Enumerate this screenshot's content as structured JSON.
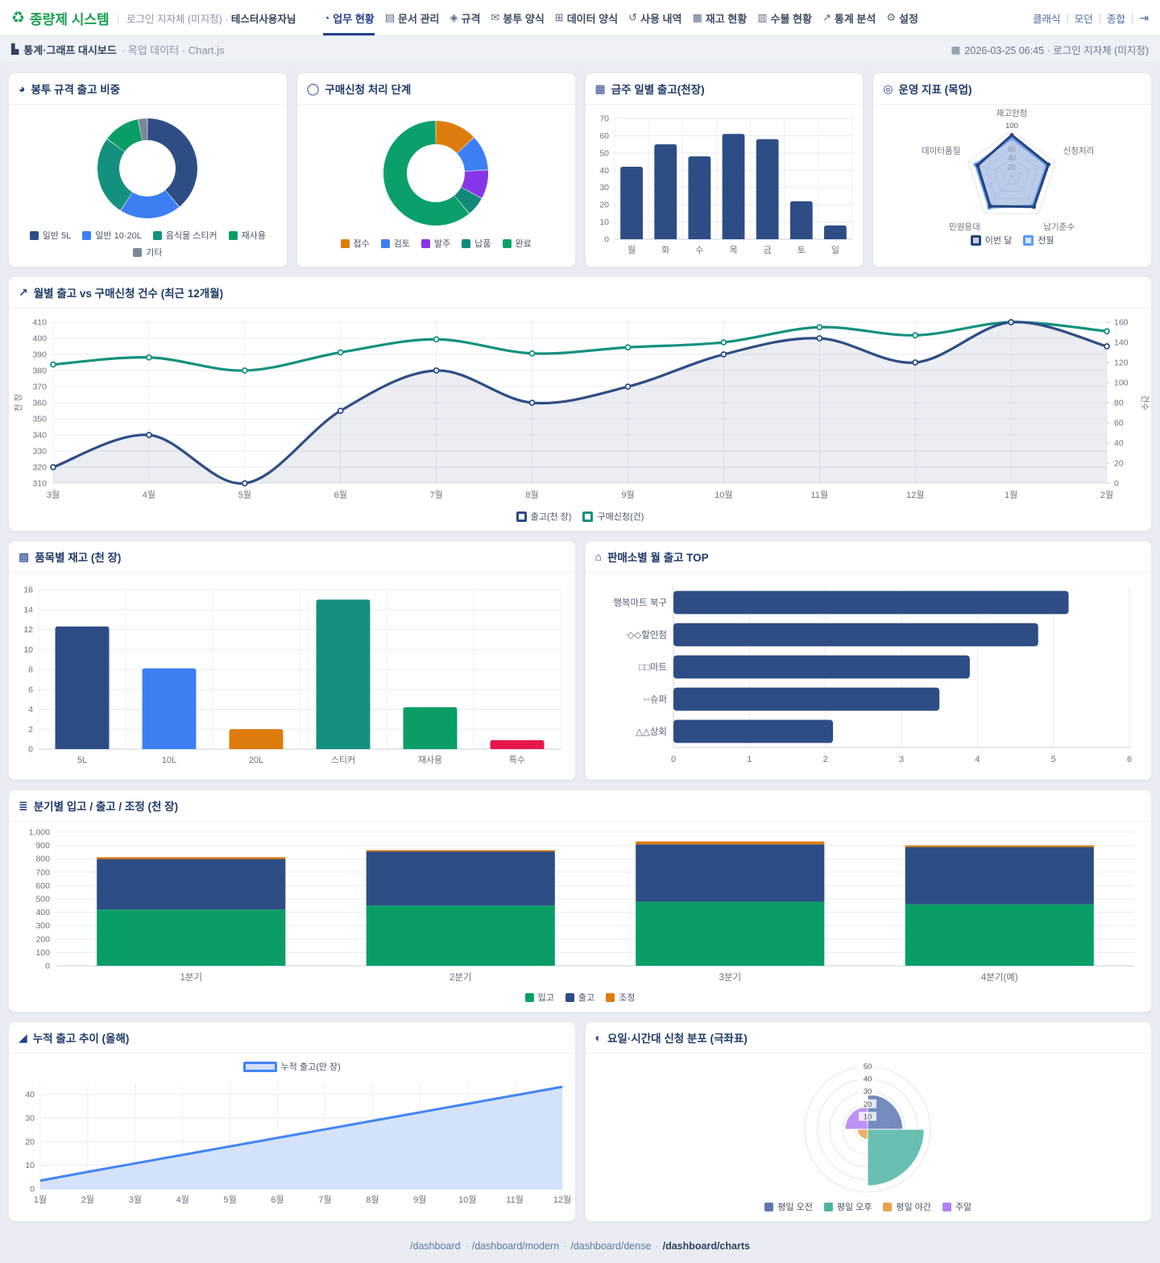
{
  "header": {
    "logo": "종량제 시스템",
    "logo_icon": "♻",
    "login_text": "로그인 지자체 (미지정) ·",
    "user_text": "테스터사용자님",
    "nav": [
      {
        "label": "업무 현황",
        "icon": "◔"
      },
      {
        "label": "문서 관리",
        "icon": "▤"
      },
      {
        "label": "규격",
        "icon": "◈"
      },
      {
        "label": "봉투 양식",
        "icon": "✉"
      },
      {
        "label": "데이터 양식",
        "icon": "⊞"
      },
      {
        "label": "사용 내역",
        "icon": "↺"
      },
      {
        "label": "재고 현황",
        "icon": "▦"
      },
      {
        "label": "수불 현황",
        "icon": "▥"
      },
      {
        "label": "통계 분석",
        "icon": "↗"
      },
      {
        "label": "설정",
        "icon": "⚙"
      }
    ],
    "views": [
      "클래식",
      "모던",
      "종합"
    ],
    "exit_icon": "⇥"
  },
  "breadcrumb": {
    "icon": "▙",
    "title": "통계·그래프 대시보드",
    "sub": "· 목업 데이터 · Chart.js",
    "date_icon": "▦",
    "right": "2026-03-25 06:45 · 로그인 지자체 (미지정)"
  },
  "chart_data": [
    {
      "type": "doughnut",
      "title": "봉투 규격 출고 비중",
      "icon": "◕",
      "labels": [
        "일반 5L",
        "일반 10·20L",
        "음식물 스티커",
        "재사용",
        "기타"
      ],
      "values": [
        39,
        20,
        26,
        12,
        3
      ],
      "colors": [
        "#2e4d85",
        "#3d7ff3",
        "#14917e",
        "#0a9e66",
        "#7b8795"
      ]
    },
    {
      "type": "doughnut",
      "title": "구매신청 처리 단계",
      "icon": "◯",
      "labels": [
        "접수",
        "검토",
        "발주",
        "납품",
        "완료"
      ],
      "values": [
        13,
        11,
        9,
        6,
        61
      ],
      "colors": [
        "#dd7c0c",
        "#3d7ff3",
        "#8636e8",
        "#12897a",
        "#0ba069"
      ]
    },
    {
      "type": "bar",
      "title": "금주 일별 출고(천장)",
      "icon": "▦",
      "categories": [
        "월",
        "화",
        "수",
        "목",
        "금",
        "토",
        "일"
      ],
      "values": [
        42,
        55,
        48,
        61,
        58,
        22,
        8
      ],
      "ylim": [
        0,
        70
      ],
      "ystep": 10,
      "color": "#2e4d85"
    },
    {
      "type": "radar",
      "title": "운영 지표 (목업)",
      "icon": "◎",
      "axes": [
        "재고안정",
        "신청처리",
        "납기준수",
        "민원응대",
        "데이터품질"
      ],
      "max": 100,
      "ticks": [
        20,
        40,
        60
      ],
      "outer_tick": 100,
      "series": [
        {
          "name": "이번 달",
          "values": [
            90,
            84,
            82,
            80,
            78
          ],
          "color": "#27447e",
          "fill": "rgba(120,145,195,0.35)"
        },
        {
          "name": "전월",
          "values": [
            84,
            80,
            78,
            84,
            83
          ],
          "color": "#5b9cf5",
          "fill": "rgba(150,190,245,0.30)"
        }
      ]
    },
    {
      "type": "line",
      "title": "월별 출고 vs 구매신청 건수 (최근 12개월)",
      "icon": "↗",
      "x": [
        "3월",
        "4월",
        "5월",
        "6월",
        "7월",
        "8월",
        "9월",
        "10월",
        "11월",
        "12월",
        "1월",
        "2월"
      ],
      "y_left": {
        "label": "천 장",
        "min": 310,
        "max": 410,
        "step": 10
      },
      "y_right": {
        "label": "건수",
        "min": 0,
        "max": 160,
        "step": 20
      },
      "series": [
        {
          "name": "출고(천 장)",
          "axis": "left",
          "values": [
            320,
            340,
            310,
            355,
            380,
            360,
            370,
            390,
            400,
            385,
            410,
            395
          ],
          "color": "#2e4d85",
          "fill": "rgba(90,110,150,0.12)"
        },
        {
          "name": "구매신청(건)",
          "axis": "right",
          "values": [
            118,
            125,
            112,
            130,
            143,
            129,
            135,
            140,
            155,
            147,
            160,
            151
          ],
          "color": "#14917e"
        }
      ]
    },
    {
      "type": "bar",
      "title": "품목별 재고 (천 장)",
      "icon": "▩",
      "categories": [
        "5L",
        "10L",
        "20L",
        "스티커",
        "재사용",
        "특수"
      ],
      "values": [
        12.3,
        8.1,
        2,
        15,
        4.2,
        0.9
      ],
      "colors": [
        "#2e4d85",
        "#3d7ff3",
        "#dd7c0c",
        "#14917e",
        "#0a9e66",
        "#e7174e"
      ],
      "ylim": [
        0,
        16
      ],
      "ystep": 2
    },
    {
      "type": "hbar",
      "title": "판매소별 월 출고 TOP",
      "icon": "⌂",
      "categories": [
        "행복마트 북구",
        "◇◇할인점",
        "□□마트",
        "◦◦슈퍼",
        "△△상회"
      ],
      "values": [
        5.2,
        4.8,
        3.9,
        3.5,
        2.1
      ],
      "xlim": [
        0,
        6
      ],
      "xstep": 1,
      "color": "#2e4d85"
    },
    {
      "type": "stacked",
      "title": "분기별 입고 / 출고 / 조정 (천 장)",
      "icon": "≣",
      "categories": [
        "1분기",
        "2분기",
        "3분기",
        "4분기(예)"
      ],
      "series": [
        {
          "name": "입고",
          "values": [
            420,
            450,
            478,
            460
          ],
          "color": "#0a9e66"
        },
        {
          "name": "출고",
          "values": [
            378,
            405,
            430,
            428
          ],
          "color": "#2e4d85"
        },
        {
          "name": "조정",
          "values": [
            14,
            10,
            22,
            12
          ],
          "color": "#dd7c0c"
        }
      ],
      "ylim": [
        0,
        1000
      ],
      "ystep": 100
    },
    {
      "type": "area",
      "title": "누적 출고 추이 (올해)",
      "icon": "◢",
      "x": [
        "1월",
        "2월",
        "3월",
        "4월",
        "5월",
        "6월",
        "7월",
        "8월",
        "9월",
        "10월",
        "11월",
        "12월"
      ],
      "name": "누적 출고(만 장)",
      "values": [
        3.5,
        7.2,
        10.8,
        14.4,
        18,
        21.6,
        25.2,
        28.8,
        32.4,
        36,
        39.6,
        43.2
      ],
      "yticks": [
        0,
        10,
        20,
        30,
        40
      ],
      "ymax": 45,
      "color": "#4285f4",
      "fill": "#cfdffb"
    },
    {
      "type": "polar",
      "title": "요일·시간대 신청 분포 (극좌표)",
      "icon": "◐",
      "labels": [
        "평일 오전",
        "평일 오후",
        "평일 야간",
        "주말"
      ],
      "values": [
        28,
        45,
        8,
        18
      ],
      "colors": [
        "#5e77b3",
        "#4db4a4",
        "#e9a14a",
        "#b17ff2"
      ],
      "ticks": [
        10,
        20,
        30,
        40,
        50
      ],
      "max": 50
    }
  ],
  "footer": {
    "links": [
      "/dashboard",
      "/dashboard/modern",
      "/dashboard/dense",
      "/dashboard/charts"
    ],
    "sep": "·"
  }
}
